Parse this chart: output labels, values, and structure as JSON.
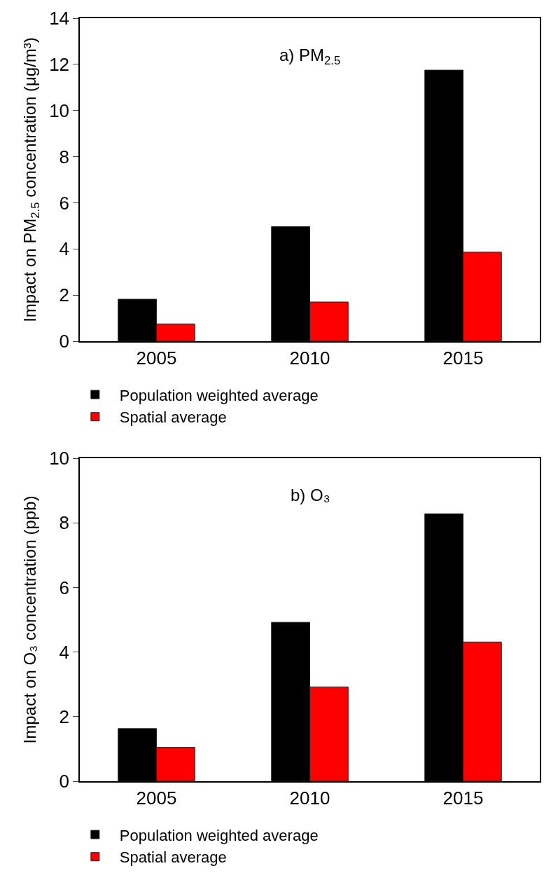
{
  "chart_data": [
    {
      "type": "bar",
      "ylabel": "Impact on PM$_{2.5}$ concentration (μg/m³)",
      "annotations": [
        "a) PM$_{2.5}$"
      ],
      "categories": [
        "2005",
        "2010",
        "2015"
      ],
      "series": [
        {
          "name": "Population weighted average",
          "color": "#000000",
          "values": [
            1.82,
            4.97,
            11.75
          ]
        },
        {
          "name": "Spatial average",
          "color": "#ff0000",
          "values": [
            0.75,
            1.7,
            3.86
          ]
        }
      ],
      "ylim": [
        0,
        14
      ],
      "yticks": [
        0,
        2,
        4,
        6,
        8,
        10,
        12,
        14
      ],
      "grid": false,
      "legend": "bottom"
    },
    {
      "type": "bar",
      "ylabel": "Impact on O₃ concentration (ppb)",
      "annotations": [
        "b) O₃"
      ],
      "categories": [
        "2005",
        "2010",
        "2015"
      ],
      "series": [
        {
          "name": "Population weighted average",
          "color": "#000000",
          "values": [
            1.63,
            4.92,
            8.28
          ]
        },
        {
          "name": "Spatial average",
          "color": "#ff0000",
          "values": [
            1.05,
            2.92,
            4.31
          ]
        }
      ],
      "ylim": [
        0,
        10
      ],
      "yticks": [
        0,
        2,
        4,
        6,
        8,
        10
      ],
      "grid": false,
      "legend": "bottom"
    }
  ]
}
